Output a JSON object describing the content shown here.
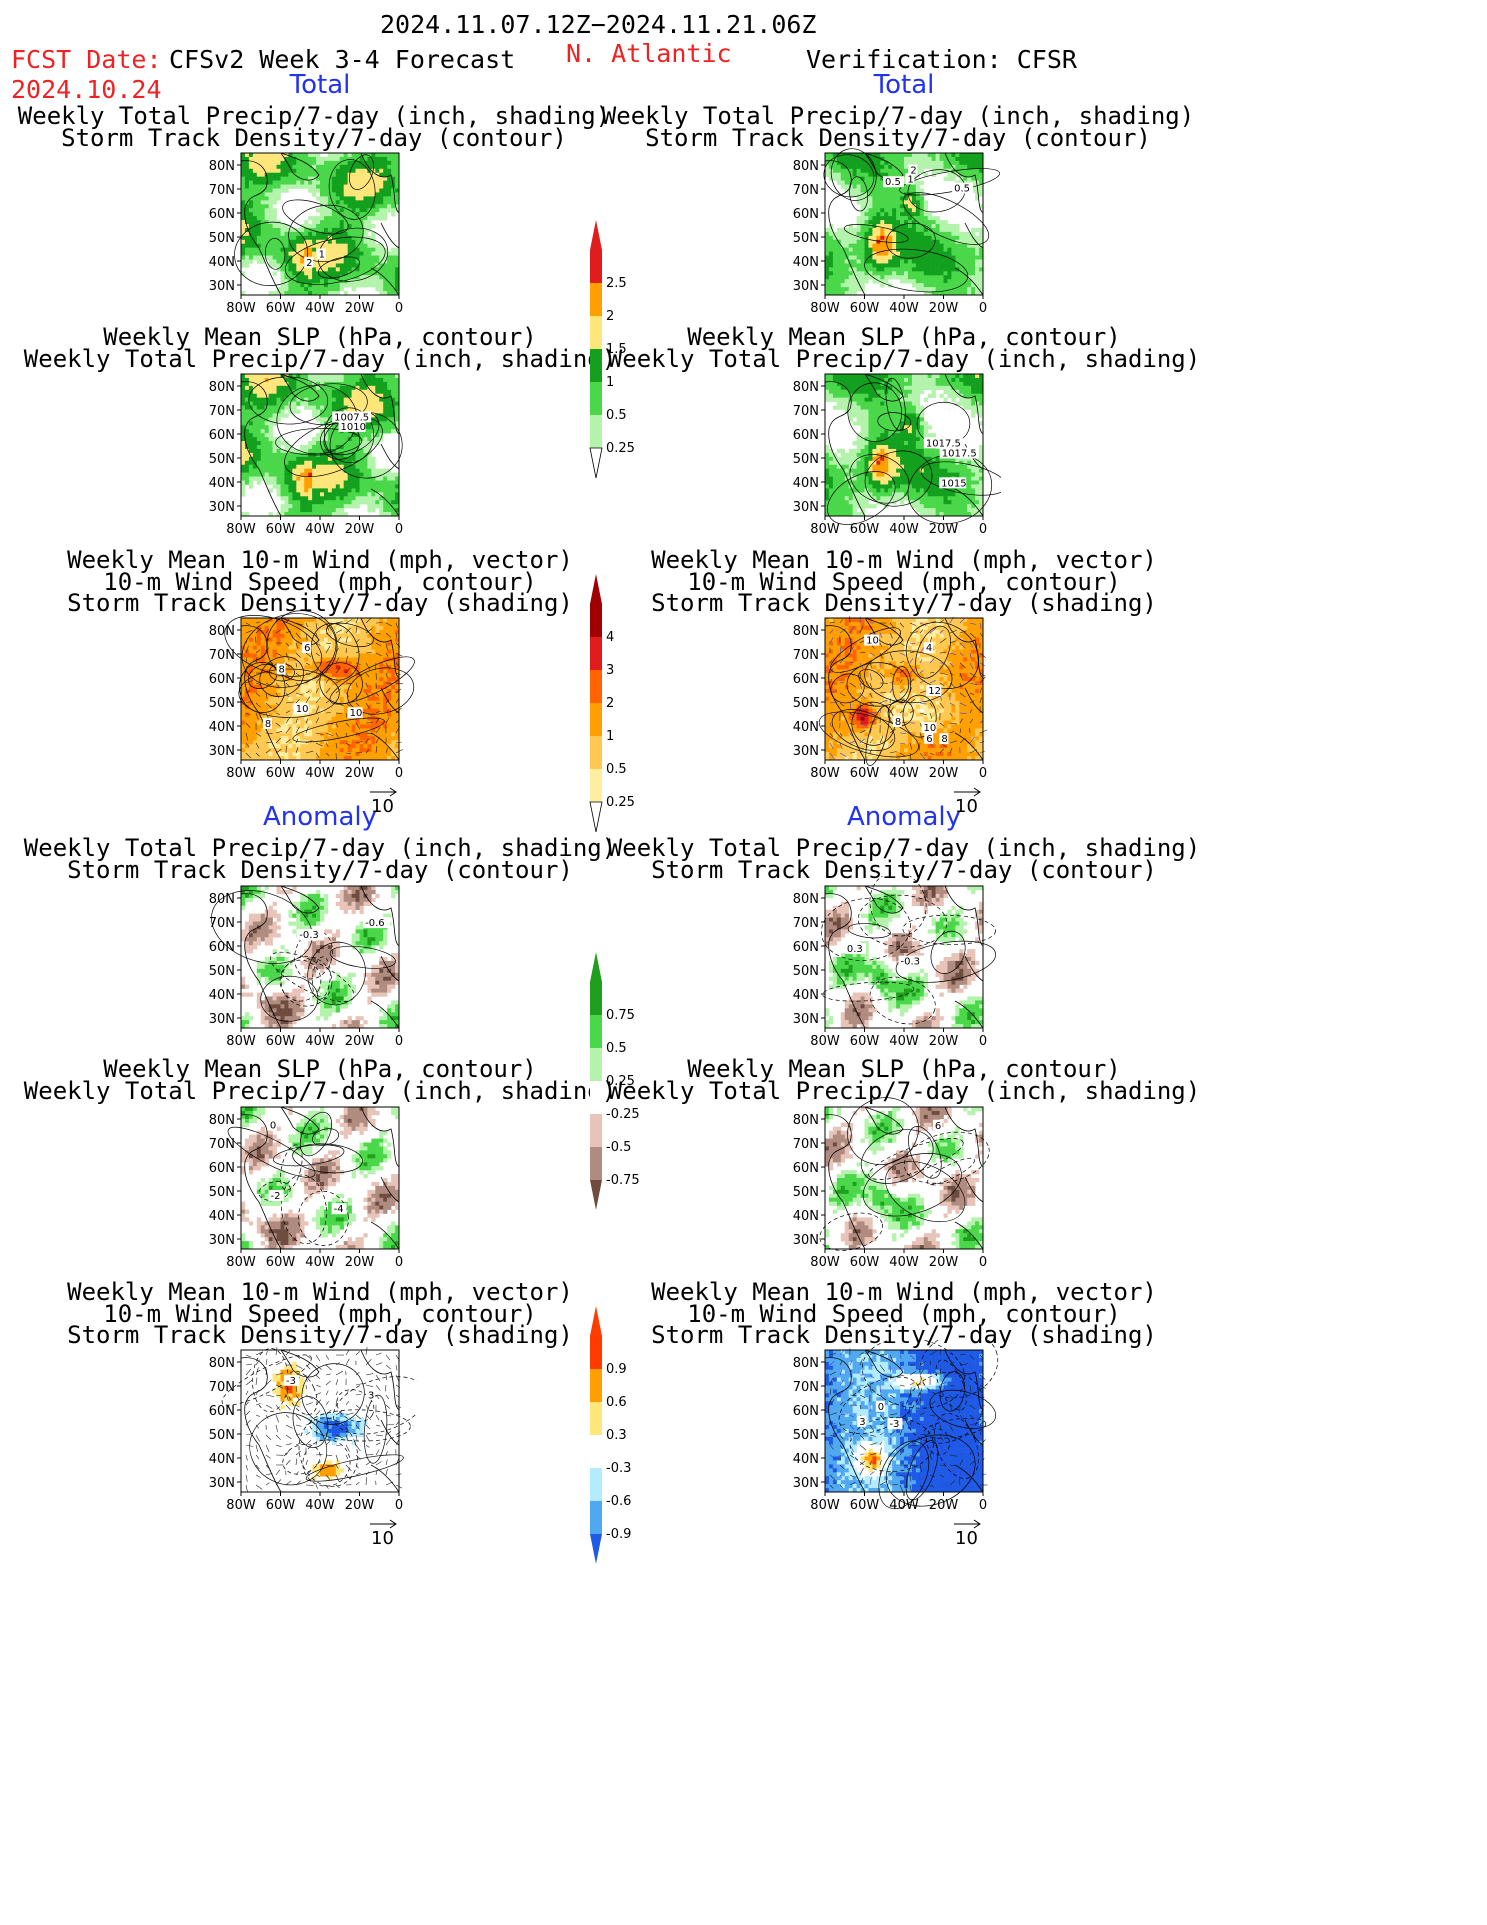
{
  "header": {
    "period": "2024.11.07.12Z−2024.11.21.06Z",
    "fcst_label": "FCST Date:",
    "fcst_date": "2024.10.24",
    "model": "CFSv2 Week 3-4 Forecast",
    "region": "N. Atlantic",
    "verification": "Verification: CFSR"
  },
  "sections": {
    "total": "Total",
    "anomaly": "Anomaly"
  },
  "titles": {
    "precip_track_1": "Weekly Total Precip/7-day (inch, shading)",
    "precip_track_2": "Storm Track Density/7-day (contour)",
    "slp_1": "Weekly Mean SLP (hPa, contour)",
    "slp_2": "Weekly Total Precip/7-day (inch, shading)",
    "wind_1": "Weekly Mean 10-m Wind (mph, vector)",
    "wind_2": "10-m Wind Speed (mph, contour)",
    "wind_3": "Storm Track Density/7-day (shading)"
  },
  "axes": {
    "lat": [
      "80N",
      "70N",
      "60N",
      "50N",
      "40N",
      "30N"
    ],
    "lon": [
      "80W",
      "60W",
      "40W",
      "20W",
      "0"
    ]
  },
  "vector_ref": "10",
  "contour_labels": {
    "l_tp": [
      "2",
      "1"
    ],
    "r_tp": [
      "1",
      "2",
      "0.5",
      "0.5"
    ],
    "l_ts": [
      "1010",
      "1007.5"
    ],
    "r_ts": [
      "1017.5",
      "1017.5",
      "1015"
    ],
    "l_tw": [
      "8",
      "10",
      "10",
      "6",
      "8"
    ],
    "r_tw": [
      "10",
      "8",
      "12",
      "4",
      "8",
      "6",
      "10"
    ],
    "l_ap": [
      "-0.3",
      "-0.6"
    ],
    "r_ap": [
      "-0.3",
      "0.3"
    ],
    "l_as": [
      "-4",
      "-2",
      "0"
    ],
    "r_as": [
      "6"
    ],
    "l_aw": [
      "3",
      "-3"
    ],
    "r_aw": [
      "3",
      "0",
      "-3"
    ]
  },
  "colorbars": {
    "precip_total": {
      "labels": [
        "2.5",
        "2",
        "1.5",
        "1",
        "0.5",
        "0.25"
      ],
      "colors": [
        "#e01c1c",
        "#ffa000",
        "#ffe67a",
        "#12a01e",
        "#4ad84a",
        "#b4f3ac"
      ]
    },
    "track_total": {
      "labels": [
        "4",
        "3",
        "2",
        "1",
        "0.5",
        "0.25"
      ],
      "colors": [
        "#a00000",
        "#e01c1c",
        "#ff6400",
        "#ffa000",
        "#ffc850",
        "#ffeea0"
      ]
    },
    "precip_anom": {
      "labels": [
        "0.75",
        "0.5",
        "0.25",
        "-0.25",
        "-0.5",
        "-0.75"
      ],
      "colors": [
        "#1ea01e",
        "#4ad84a",
        "#b4f3ac",
        "#ffffff",
        "#e8c4b8",
        "#b08c80",
        "#6e4c40"
      ]
    },
    "track_anom": {
      "labels": [
        "0.9",
        "0.6",
        "0.3",
        "-0.3",
        "-0.6",
        "-0.9"
      ],
      "colors": [
        "#ff3c00",
        "#ffa000",
        "#ffe67a",
        "#ffffff",
        "#b4ecff",
        "#50a8f0",
        "#1e5ae6"
      ]
    }
  }
}
